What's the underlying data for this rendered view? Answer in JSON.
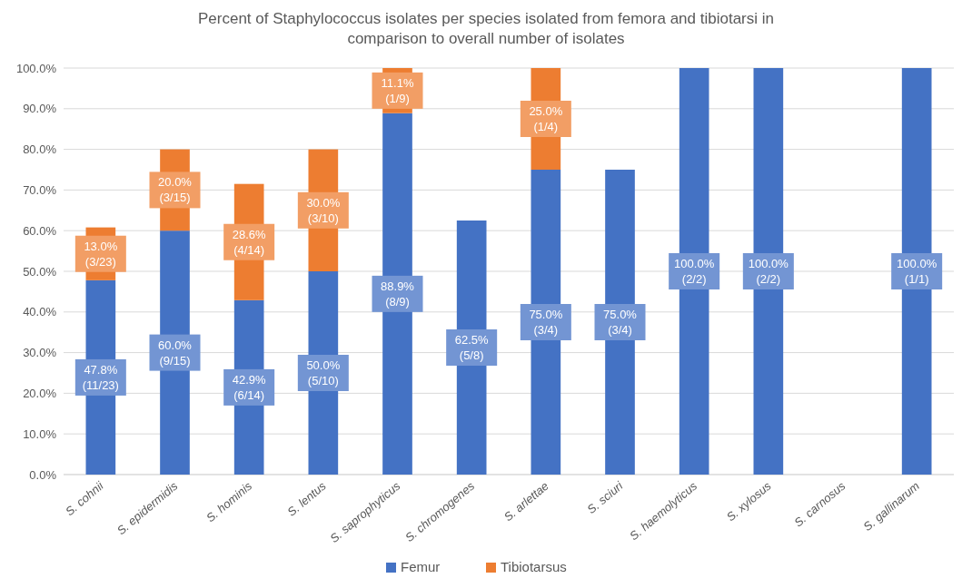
{
  "chart_data": {
    "type": "bar",
    "stacked": true,
    "title": "Percent of Staphylococcus isolates per species isolated from femora and tibiotarsi in comparison to overall number of isolates",
    "categories": [
      "S. cohnii",
      "S. epidermidis",
      "S. hominis",
      "S. lentus",
      "S. saprophyticus",
      "S. chromogenes",
      "S. arlettae",
      "S. sciuri",
      "S. haemolyticus",
      "S. xylosus",
      "S. carnosus",
      "S. gallinarum"
    ],
    "series": [
      {
        "name": "Femur",
        "color": "#4472c4",
        "values": [
          47.8,
          60.0,
          42.9,
          50.0,
          88.9,
          62.5,
          75.0,
          75.0,
          100,
          100,
          null,
          100
        ],
        "value_labels": [
          "47.8%\n(11/23)",
          "60.0%\n(9/15)",
          "42.9%\n(6/14)",
          "50.0%\n(5/10)",
          "88.9%\n(8/9)",
          "62.5%\n(5/8)",
          "75.0%\n(3/4)",
          "75.0%\n(3/4)",
          "100.0%\n(2/2)",
          "100.0%\n(2/2)",
          null,
          "100.0%\n(1/1)"
        ]
      },
      {
        "name": "Tibiotarsus",
        "color": "#ed7d31",
        "values": [
          13.0,
          20.0,
          28.6,
          30.0,
          11.1,
          null,
          25.0,
          null,
          null,
          null,
          null,
          null
        ],
        "value_labels": [
          "13.0%\n(3/23)",
          "20.0%\n(3/15)",
          "28.6%\n(4/14)",
          "30.0%\n(3/10)",
          "11.1%\n(1/9)",
          null,
          "25.0%\n(1/4)",
          null,
          null,
          null,
          null,
          null
        ]
      }
    ],
    "ylim": [
      0,
      100
    ],
    "yticks": [
      {
        "value": 0,
        "label": "0.0%"
      },
      {
        "value": 10,
        "label": "10.0%"
      },
      {
        "value": 20,
        "label": "20.0%"
      },
      {
        "value": 30,
        "label": "30.0%"
      },
      {
        "value": 40,
        "label": "40.0%"
      },
      {
        "value": 50,
        "label": "50.0%"
      },
      {
        "value": 60,
        "label": "60.0%"
      },
      {
        "value": 70,
        "label": "70.0%"
      },
      {
        "value": 80,
        "label": "80.0%"
      },
      {
        "value": 90,
        "label": "90.0%"
      },
      {
        "value": 100,
        "label": "100.0%"
      }
    ],
    "grid": "y",
    "legend": "bottom"
  }
}
